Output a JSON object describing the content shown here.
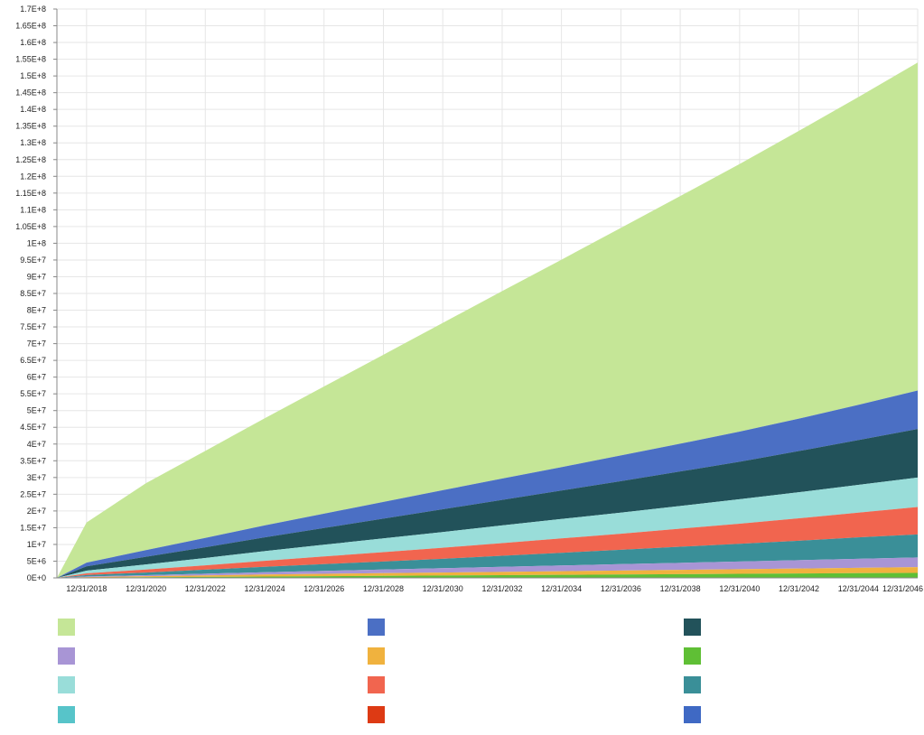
{
  "chart_data": {
    "type": "area",
    "stacked": true,
    "title": "",
    "xlabel": "",
    "ylabel": "",
    "ylim": [
      0,
      170000000
    ],
    "grid": true,
    "legend_position": "bottom",
    "x": [
      "12/31/2017",
      "12/31/2018",
      "12/31/2020",
      "12/31/2022",
      "12/31/2024",
      "12/31/2026",
      "12/31/2028",
      "12/31/2030",
      "12/31/2032",
      "12/31/2034",
      "12/31/2036",
      "12/31/2038",
      "12/31/2040",
      "12/31/2042",
      "12/31/2044",
      "12/31/2046"
    ],
    "x_tick_labels": [
      "12/31/2018",
      "12/31/2020",
      "12/31/2022",
      "12/31/2024",
      "12/31/2026",
      "12/31/2028",
      "12/31/2030",
      "12/31/2032",
      "12/31/2034",
      "12/31/2036",
      "12/31/2038",
      "12/31/2040",
      "12/31/2042",
      "12/31/2044",
      "12/31/2046"
    ],
    "y_tick_labels": [
      "0E+0",
      "5E+6",
      "1E+7",
      "1.5E+7",
      "2E+7",
      "2.5E+7",
      "3E+7",
      "3.5E+7",
      "4E+7",
      "4.5E+7",
      "5E+7",
      "5.5E+7",
      "6E+7",
      "6.5E+7",
      "7E+7",
      "7.5E+7",
      "8E+7",
      "8.5E+7",
      "9E+7",
      "9.5E+7",
      "1E+8",
      "1.05E+8",
      "1.1E+8",
      "1.15E+8",
      "1.2E+8",
      "1.25E+8",
      "1.3E+8",
      "1.35E+8",
      "1.4E+8",
      "1.45E+8",
      "1.5E+8",
      "1.55E+8",
      "1.6E+8",
      "1.65E+8",
      "1.7E+8"
    ],
    "stack_order_bottom_to_top": [
      11,
      10,
      9,
      8,
      7,
      6,
      5,
      4,
      3,
      2,
      1,
      0
    ],
    "series": [
      {
        "color": "#c5e697",
        "values": [
          0,
          12000000,
          20000000,
          26000000,
          32000000,
          38000000,
          44000000,
          50000000,
          56000000,
          62000000,
          68000000,
          74000000,
          80000000,
          86000000,
          92000000,
          98000000
        ]
      },
      {
        "color": "#4b6fc4",
        "values": [
          0,
          1100000,
          2000000,
          2800000,
          3600000,
          4300000,
          5000000,
          5700000,
          6400000,
          7000000,
          7700000,
          8300000,
          9000000,
          9700000,
          10500000,
          11500000
        ]
      },
      {
        "color": "#22525a",
        "values": [
          0,
          1300000,
          2300000,
          3200000,
          4100000,
          5000000,
          5900000,
          6800000,
          7600000,
          8500000,
          9400000,
          10300000,
          11200000,
          12300000,
          13400000,
          14500000
        ]
      },
      {
        "color": "#99ddd9",
        "values": [
          0,
          800000,
          1500000,
          2200000,
          2900000,
          3500000,
          4100000,
          4700000,
          5300000,
          5800000,
          6300000,
          6800000,
          7300000,
          7800000,
          8300000,
          8800000
        ]
      },
      {
        "color": "#dd3a14",
        "values": [
          0,
          0,
          0,
          0,
          0,
          0,
          0,
          0,
          0,
          0,
          0,
          0,
          0,
          0,
          0,
          0
        ]
      },
      {
        "color": "#f1654f",
        "values": [
          0,
          500000,
          900000,
          1300000,
          1800000,
          2300000,
          2800000,
          3300000,
          3800000,
          4300000,
          4800000,
          5400000,
          6000000,
          6700000,
          7400000,
          8200000
        ]
      },
      {
        "color": "#3a8f98",
        "values": [
          0,
          400000,
          800000,
          1200000,
          1600000,
          2000000,
          2400000,
          2800000,
          3300000,
          3800000,
          4300000,
          4800000,
          5300000,
          5800000,
          6400000,
          6900000
        ]
      },
      {
        "color": "#57c4c9",
        "values": [
          0,
          0,
          0,
          0,
          0,
          0,
          0,
          0,
          0,
          0,
          0,
          0,
          0,
          0,
          0,
          0
        ]
      },
      {
        "color": "#a895d5",
        "values": [
          0,
          200000,
          300000,
          500000,
          700000,
          900000,
          1100000,
          1300000,
          1500000,
          1700000,
          1900000,
          2100000,
          2300000,
          2500000,
          2700000,
          2900000
        ]
      },
      {
        "color": "#f0b23e",
        "values": [
          0,
          150000,
          300000,
          450000,
          600000,
          700000,
          800000,
          900000,
          1000000,
          1100000,
          1200000,
          1300000,
          1400000,
          1500000,
          1600000,
          1700000
        ]
      },
      {
        "color": "#3f69c4",
        "values": [
          0,
          0,
          0,
          0,
          0,
          0,
          0,
          0,
          0,
          0,
          0,
          0,
          0,
          0,
          0,
          0
        ]
      },
      {
        "color": "#5fbf35",
        "values": [
          0,
          100000,
          200000,
          300000,
          400000,
          500000,
          600000,
          700000,
          800000,
          900000,
          1000000,
          1100000,
          1200000,
          1300000,
          1400000,
          1500000
        ]
      }
    ],
    "legend_order": [
      0,
      1,
      2,
      8,
      9,
      11,
      3,
      5,
      6,
      7,
      4,
      10
    ]
  }
}
